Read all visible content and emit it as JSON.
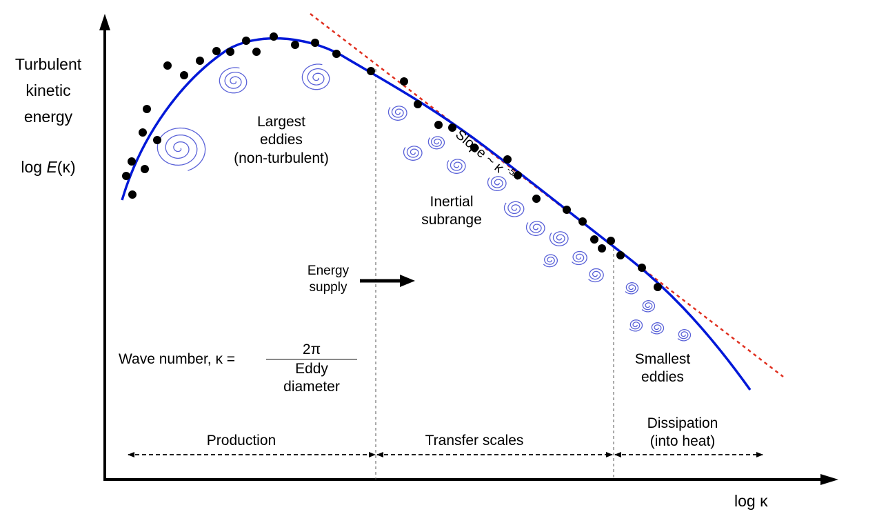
{
  "y_axis": {
    "label_lines": [
      "Turbulent",
      "kinetic",
      "energy"
    ],
    "log_label": {
      "prefix": "log ",
      "italic": "E",
      "suffix": "(κ)"
    }
  },
  "x_axis": {
    "label": "log κ"
  },
  "annotations": {
    "largest_eddies": [
      "Largest",
      "eddies",
      "(non-turbulent)"
    ],
    "slope": {
      "text": "Slope ~ κ",
      "exponent": "-5/3"
    },
    "inertial": [
      "Inertial",
      "subrange"
    ],
    "energy_supply": [
      "Energy",
      "supply"
    ],
    "smallest_eddies": [
      "Smallest",
      "eddies"
    ],
    "wave_number": {
      "lhs": "Wave number, κ =",
      "numerator": "2π",
      "denominator": "Eddy diameter"
    }
  },
  "ranges": {
    "production": "Production",
    "transfer": "Transfer scales",
    "dissipation": [
      "Dissipation",
      "(into heat)"
    ]
  },
  "colors": {
    "curve": "#0018d8",
    "slope_line": "#e03020",
    "eddy": "#5a62d8",
    "axis": "#000000"
  },
  "icons": [
    "spiral-eddy-icon",
    "energy-supply-arrow-icon"
  ]
}
